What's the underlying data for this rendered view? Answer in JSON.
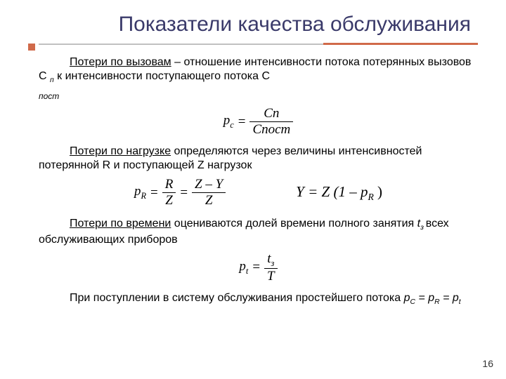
{
  "title": "Показатели качества обслуживания",
  "accent_color": "#d06a4a",
  "title_color": "#3a3a6a",
  "rule_gray": "#c0c0c0",
  "page_number": "16",
  "p1": {
    "lead": "Потери по вызовам",
    "rest_a": " – отношение интенсивности потока потерянных вызовов С ",
    "sub1": "п",
    "rest_b": " к интенсивности поступающего потока С ",
    "sub2": "пост"
  },
  "f1": {
    "lhs": "p",
    "lhs_sub": "с",
    "num": "Cп",
    "den": "Cпост"
  },
  "p2": {
    "lead": "Потери по нагрузке",
    "rest": "  определяются через величины интенсивностей потерянной R и поступающей Z нагрузок"
  },
  "f2a": {
    "lhs": "p",
    "lhs_sub": "R",
    "n1": "R",
    "d1": "Z",
    "n2": "Z – Y",
    "d2": "Z"
  },
  "f2b": "Y = Z (1 – p",
  "f2b_sub": "R",
  "f2b_close": " )",
  "p3": {
    "lead": "Потери по времени",
    "rest_a": " оцениваются долей времени полного занятия ",
    "it": "t",
    "it_sub": "з ",
    "rest_b": "всех обслуживающих приборов"
  },
  "f3": {
    "lhs": "p",
    "lhs_sub": "t",
    "num": "t",
    "num_sub": "з",
    "den": "T"
  },
  "p4": {
    "text_a": "При поступлении в систему обслуживания простейшего потока  ",
    "eq": "p",
    "s1": "C",
    "mid1": " = p",
    "s2": "R",
    "mid2": " = p",
    "s3": "t"
  }
}
